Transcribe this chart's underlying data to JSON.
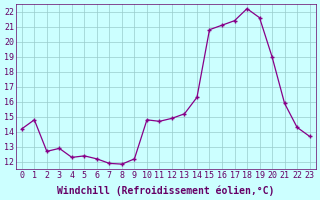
{
  "x": [
    0,
    1,
    2,
    3,
    4,
    5,
    6,
    7,
    8,
    9,
    10,
    11,
    12,
    13,
    14,
    15,
    16,
    17,
    18,
    19,
    20,
    21,
    22,
    23
  ],
  "y": [
    14.2,
    14.8,
    12.7,
    12.9,
    12.3,
    12.4,
    12.2,
    11.9,
    11.85,
    12.2,
    14.8,
    14.7,
    14.9,
    15.2,
    16.3,
    20.8,
    21.1,
    21.4,
    22.2,
    21.6,
    19.0,
    15.9,
    14.3,
    13.7
  ],
  "line_color": "#880088",
  "marker_color": "#880088",
  "bg_color": "#ccffff",
  "grid_color": "#99cccc",
  "xlabel": "Windchill (Refroidissement éolien,°C)",
  "xlim": [
    -0.5,
    23.5
  ],
  "ylim": [
    11.5,
    22.5
  ],
  "yticks": [
    12,
    13,
    14,
    15,
    16,
    17,
    18,
    19,
    20,
    21,
    22
  ],
  "xticks": [
    0,
    1,
    2,
    3,
    4,
    5,
    6,
    7,
    8,
    9,
    10,
    11,
    12,
    13,
    14,
    15,
    16,
    17,
    18,
    19,
    20,
    21,
    22,
    23
  ],
  "xlabel_fontsize": 7.0,
  "tick_fontsize": 6.0,
  "axis_color": "#660066",
  "linewidth": 0.9,
  "markersize": 3.5
}
